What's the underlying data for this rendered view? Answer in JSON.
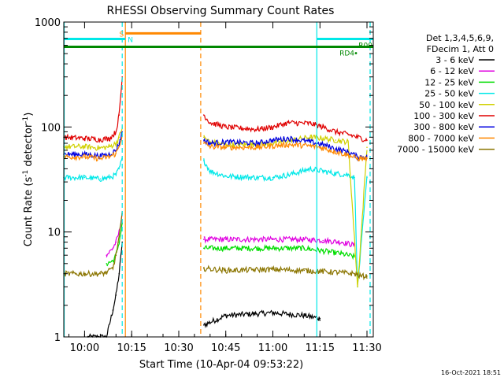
{
  "chart_data": {
    "type": "line",
    "title": "RHESSI Observing Summary Count Rates",
    "xlabel": "Start Time (10-Apr-04 09:53:22)",
    "ylabel_prefix": "Count Rate (s",
    "ylabel_sup": "-1",
    "ylabel_mid": " detector",
    "ylabel_sup2": "-1",
    "ylabel_suffix": ")",
    "y_scale": "log",
    "ylim": [
      1,
      1000
    ],
    "xlim": [
      "09:53:22",
      "11:32:00"
    ],
    "x_ticks": [
      "10:00",
      "10:15",
      "10:30",
      "10:45",
      "11:00",
      "11:15",
      "11:30"
    ],
    "y_ticks": [
      "1",
      "10",
      "100",
      "1000"
    ],
    "legend_header": [
      "Det 1,3,4,5,6,9,",
      "FDecim 1, Att 0"
    ],
    "legend_position": "right",
    "grid": false,
    "series": [
      {
        "name": "3 - 6 keV",
        "color": "#000000",
        "segments": [
          {
            "x": [
              "10:01",
              "10:05",
              "10:07",
              "10:09",
              "10:10",
              "10:11",
              "10:12"
            ],
            "y": [
              1,
              1,
              1,
              1.8,
              2.5,
              4,
              8
            ]
          },
          {
            "x": [
              "10:38",
              "10:45",
              "11:00",
              "11:10",
              "11:15"
            ],
            "y": [
              1.3,
              1.6,
              1.7,
              1.6,
              1.5
            ]
          }
        ]
      },
      {
        "name": "6 - 12 keV",
        "color": "#e000e0",
        "segments": [
          {
            "x": [
              "10:07",
              "10:09",
              "10:10",
              "10:11",
              "10:12"
            ],
            "y": [
              6,
              7,
              8,
              10,
              15
            ]
          },
          {
            "x": [
              "10:38",
              "10:45",
              "11:00",
              "11:10",
              "11:16",
              "11:22",
              "11:26"
            ],
            "y": [
              8.5,
              8.5,
              8.5,
              8.5,
              8.3,
              8,
              7.5
            ]
          }
        ]
      },
      {
        "name": "12 - 25 keV",
        "color": "#00dd00",
        "segments": [
          {
            "x": [
              "10:07",
              "10:09",
              "10:10",
              "10:11",
              "10:12"
            ],
            "y": [
              5,
              5.3,
              6,
              8,
              12
            ]
          },
          {
            "x": [
              "10:38",
              "10:45",
              "11:00",
              "11:10",
              "11:16",
              "11:22",
              "11:26"
            ],
            "y": [
              7,
              7,
              7,
              7,
              6.6,
              6.2,
              5.8
            ]
          }
        ]
      },
      {
        "name": "25 - 50 keV",
        "color": "#00e8e8",
        "segments": [
          {
            "x": [
              "09:53:22",
              "10:00",
              "10:05",
              "10:08",
              "10:10",
              "10:11",
              "10:12"
            ],
            "y": [
              33,
              33,
              32,
              33,
              35,
              40,
              50
            ]
          },
          {
            "x": [
              "10:38",
              "10:40",
              "10:45",
              "10:55",
              "11:00",
              "11:05",
              "11:12",
              "11:16",
              "11:20",
              "11:24",
              "11:26",
              "11:27",
              "11:30"
            ],
            "y": [
              48,
              38,
              34,
              33,
              33,
              35,
              40,
              38,
              36,
              35,
              33,
              3,
              33
            ]
          }
        ]
      },
      {
        "name": "50 - 100 keV",
        "color": "#d0d000",
        "segments": [
          {
            "x": [
              "09:53:22",
              "10:00",
              "10:05",
              "10:08",
              "10:10",
              "10:11",
              "10:12"
            ],
            "y": [
              65,
              65,
              63,
              65,
              70,
              80,
              100
            ]
          },
          {
            "x": [
              "10:38",
              "10:40",
              "10:45",
              "10:55",
              "11:00",
              "11:05",
              "11:12",
              "11:16",
              "11:20",
              "11:24",
              "11:27",
              "11:30"
            ],
            "y": [
              80,
              72,
              68,
              68,
              70,
              74,
              80,
              78,
              75,
              72,
              3,
              64
            ]
          }
        ]
      },
      {
        "name": "100 - 300 keV",
        "color": "#e00000",
        "segments": [
          {
            "x": [
              "09:53:22",
              "10:00",
              "10:05",
              "10:08",
              "10:10",
              "10:11",
              "10:12"
            ],
            "y": [
              80,
              78,
              76,
              78,
              90,
              130,
              300
            ]
          },
          {
            "x": [
              "10:38",
              "10:40",
              "10:45",
              "10:55",
              "11:00",
              "11:05",
              "11:12",
              "11:16",
              "11:20",
              "11:24",
              "11:27",
              "11:30"
            ],
            "y": [
              130,
              110,
              100,
              95,
              100,
              110,
              108,
              100,
              90,
              85,
              80,
              75
            ]
          }
        ]
      },
      {
        "name": "300 - 800 keV",
        "color": "#0000e0",
        "segments": [
          {
            "x": [
              "09:53:22",
              "10:00",
              "10:05",
              "10:08",
              "10:10",
              "10:11",
              "10:12"
            ],
            "y": [
              55,
              55,
              53,
              55,
              60,
              70,
              90
            ]
          },
          {
            "x": [
              "10:38",
              "10:40",
              "10:45",
              "10:55",
              "11:00",
              "11:05",
              "11:12",
              "11:16",
              "11:20",
              "11:24",
              "11:27",
              "11:30"
            ],
            "y": [
              75,
              70,
              72,
              70,
              75,
              78,
              72,
              68,
              62,
              58,
              52,
              52
            ]
          }
        ]
      },
      {
        "name": "800 - 7000 keV",
        "color": "#ff8800",
        "segments": [
          {
            "x": [
              "09:53:22",
              "10:00",
              "10:05",
              "10:08",
              "10:10",
              "10:11",
              "10:12"
            ],
            "y": [
              52,
              52,
              50,
              52,
              56,
              65,
              85
            ]
          },
          {
            "x": [
              "10:38",
              "10:40",
              "10:45",
              "10:55",
              "11:00",
              "11:05",
              "11:12",
              "11:16",
              "11:20",
              "11:24",
              "11:27",
              "11:30"
            ],
            "y": [
              70,
              65,
              64,
              64,
              66,
              68,
              66,
              63,
              58,
              54,
              50,
              50
            ]
          }
        ]
      },
      {
        "name": "7000 - 15000 keV",
        "color": "#8b7500",
        "segments": [
          {
            "x": [
              "09:53:22",
              "10:00",
              "10:05",
              "10:07",
              "10:09",
              "10:10",
              "10:11",
              "10:12"
            ],
            "y": [
              4,
              4,
              4,
              4.1,
              4.5,
              6,
              9,
              15
            ]
          },
          {
            "x": [
              "10:38",
              "10:45",
              "11:00",
              "11:10",
              "11:16",
              "11:22",
              "11:26",
              "11:28",
              "11:30"
            ],
            "y": [
              4.5,
              4.3,
              4.4,
              4.3,
              4.2,
              4.1,
              4,
              3.8,
              3.8
            ]
          }
        ]
      }
    ],
    "flags": [
      {
        "label": "S",
        "color": "#ff8800",
        "x": [
          "10:13",
          "10:37"
        ],
        "y": 780
      },
      {
        "label": "N",
        "color": "#00e8e8",
        "x": [
          "09:53:22",
          "10:13"
        ],
        "y": 690
      },
      {
        "label": "",
        "color": "#00e8e8",
        "x": [
          "11:14",
          "11:32"
        ],
        "y": 690
      },
      {
        "label": "RD4",
        "color": "#008800",
        "x": [
          "09:53:22",
          "11:32"
        ],
        "y": 580
      },
      {
        "label": "R00",
        "color": "#008800",
        "x": [],
        "y": 0
      }
    ],
    "vertical_lines": [
      {
        "x": "09:53:30",
        "color": "#00e8e8",
        "style": "solid"
      },
      {
        "x": "10:12",
        "color": "#00e8e8",
        "style": "dashed"
      },
      {
        "x": "10:13",
        "color": "#ff8800",
        "style": "solid"
      },
      {
        "x": "10:37",
        "color": "#ff8800",
        "style": "dashed"
      },
      {
        "x": "11:14",
        "color": "#00e8e8",
        "style": "solid"
      },
      {
        "x": "11:31",
        "color": "#00e8e8",
        "style": "dashed"
      }
    ]
  },
  "timestamp": "16-Oct-2021 18:51"
}
